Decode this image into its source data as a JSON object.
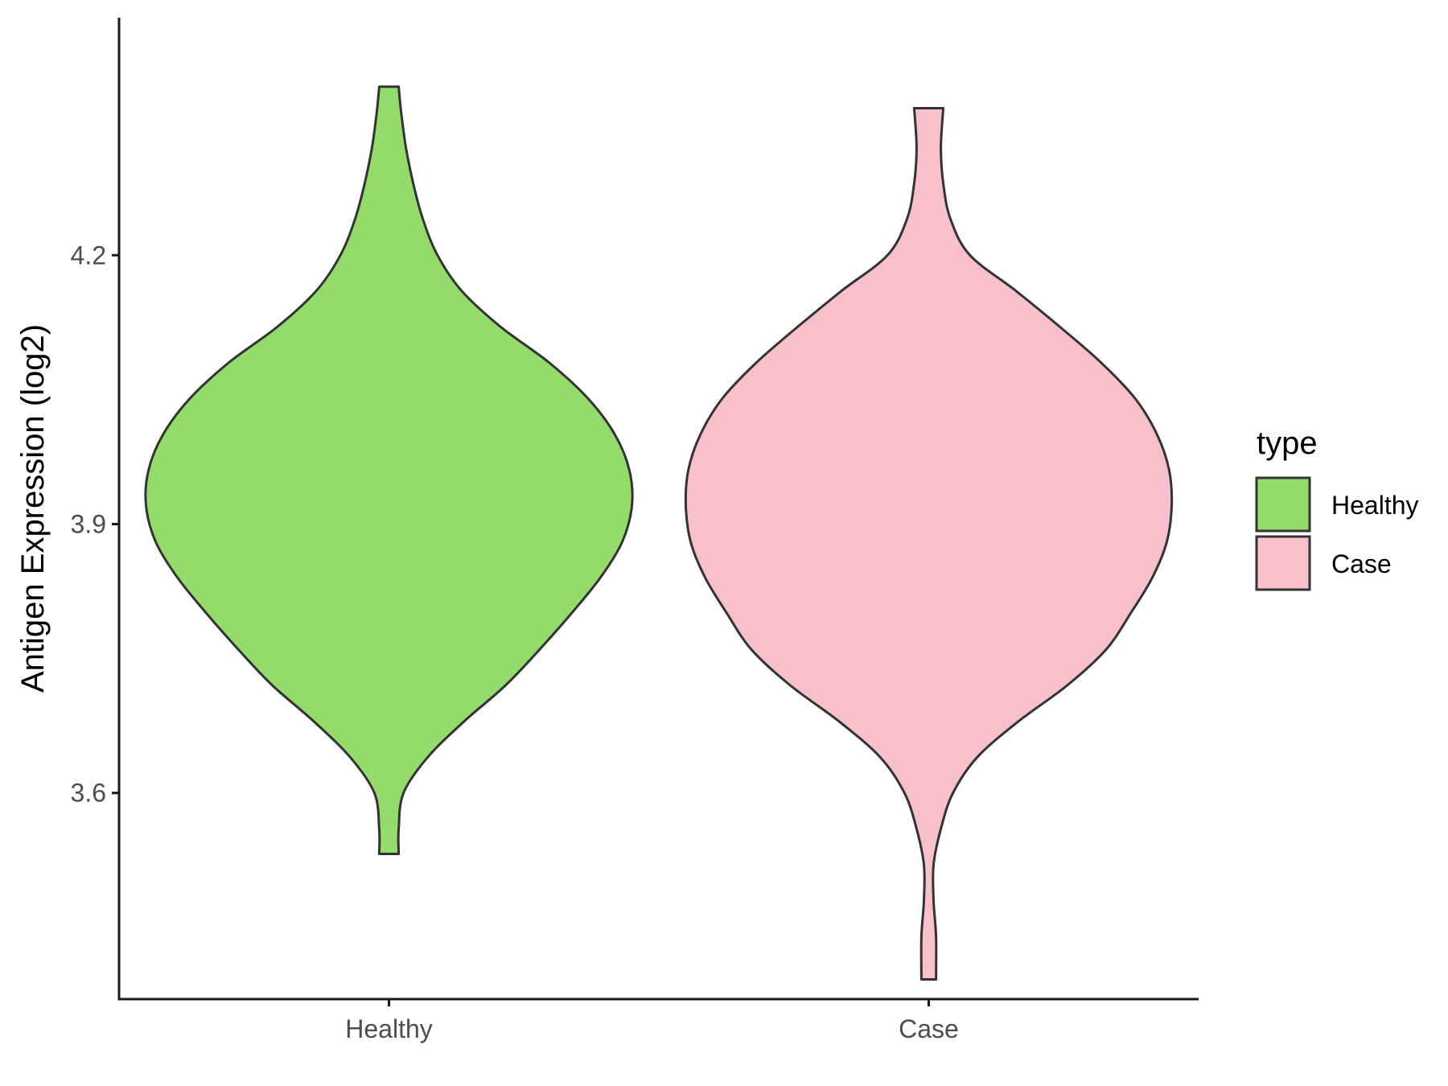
{
  "chart_data": {
    "type": "violin",
    "ylabel": "Antigen Expression (log2)",
    "xlabel": "",
    "categories": [
      "Healthy",
      "Case"
    ],
    "y_ticks": [
      {
        "value": 3.6,
        "label": "3.6"
      },
      {
        "value": 3.9,
        "label": "3.9"
      },
      {
        "value": 4.2,
        "label": "4.2"
      }
    ],
    "ylim": [
      3.37,
      4.465
    ],
    "grid": false,
    "legend": {
      "title": "type",
      "position": "right",
      "entries": [
        {
          "label": "Healthy",
          "color": "#93dc6b"
        },
        {
          "label": "Case",
          "color": "#f8c0cb"
        }
      ]
    },
    "series": [
      {
        "name": "Healthy",
        "color": "#93dc6b",
        "min": 3.532,
        "max": 4.388,
        "density_profile": [
          [
            3.532,
            0.04
          ],
          [
            3.56,
            0.04
          ],
          [
            3.6,
            0.06
          ],
          [
            3.64,
            0.16
          ],
          [
            3.68,
            0.31
          ],
          [
            3.72,
            0.48
          ],
          [
            3.76,
            0.62
          ],
          [
            3.8,
            0.75
          ],
          [
            3.84,
            0.87
          ],
          [
            3.88,
            0.96
          ],
          [
            3.92,
            1.0
          ],
          [
            3.96,
            0.99
          ],
          [
            4.0,
            0.93
          ],
          [
            4.04,
            0.82
          ],
          [
            4.08,
            0.66
          ],
          [
            4.12,
            0.46
          ],
          [
            4.16,
            0.3
          ],
          [
            4.2,
            0.2
          ],
          [
            4.24,
            0.14
          ],
          [
            4.28,
            0.1
          ],
          [
            4.32,
            0.07
          ],
          [
            4.36,
            0.05
          ],
          [
            4.388,
            0.04
          ]
        ]
      },
      {
        "name": "Case",
        "color": "#f8c0cb",
        "min": 3.392,
        "max": 4.364,
        "density_profile": [
          [
            3.392,
            0.03
          ],
          [
            3.44,
            0.03
          ],
          [
            3.48,
            0.02
          ],
          [
            3.52,
            0.02
          ],
          [
            3.56,
            0.05
          ],
          [
            3.6,
            0.1
          ],
          [
            3.64,
            0.2
          ],
          [
            3.68,
            0.37
          ],
          [
            3.72,
            0.57
          ],
          [
            3.76,
            0.73
          ],
          [
            3.8,
            0.83
          ],
          [
            3.84,
            0.92
          ],
          [
            3.88,
            0.98
          ],
          [
            3.92,
            1.0
          ],
          [
            3.96,
            0.99
          ],
          [
            4.0,
            0.94
          ],
          [
            4.04,
            0.85
          ],
          [
            4.08,
            0.71
          ],
          [
            4.12,
            0.54
          ],
          [
            4.16,
            0.36
          ],
          [
            4.2,
            0.17
          ],
          [
            4.24,
            0.09
          ],
          [
            4.28,
            0.06
          ],
          [
            4.32,
            0.05
          ],
          [
            4.364,
            0.06
          ]
        ]
      }
    ]
  }
}
